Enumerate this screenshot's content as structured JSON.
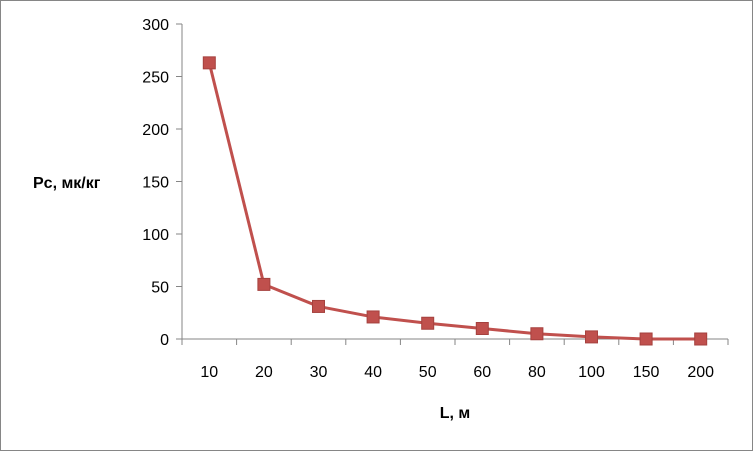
{
  "chart_data": {
    "type": "line",
    "title": "",
    "xlabel": "L, м",
    "ylabel": "Pc, мк/кг",
    "categories": [
      "10",
      "20",
      "30",
      "40",
      "50",
      "60",
      "80",
      "100",
      "150",
      "200"
    ],
    "series": [
      {
        "values": [
          263,
          52,
          31,
          21,
          15,
          10,
          5,
          2,
          0,
          0
        ],
        "color": "#c0504d",
        "marker": "square"
      }
    ],
    "ylim": [
      0,
      300
    ],
    "yticks": [
      0,
      50,
      100,
      150,
      200,
      250,
      300
    ],
    "grid": false,
    "legend": "none"
  }
}
